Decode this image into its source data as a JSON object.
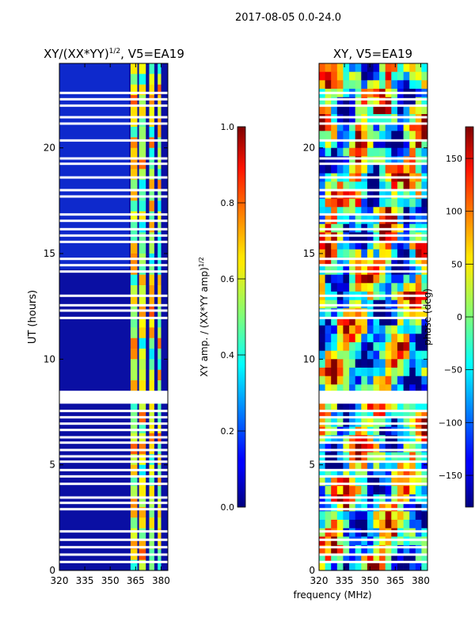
{
  "figure": {
    "suptitle": "2017-08-05 0.0-24.0",
    "xlabel": "frequency (MHz)"
  },
  "chart_data": [
    {
      "type": "heatmap",
      "title_base": "XY/(XX*YY)",
      "title_exp": "1/2",
      "title_suffix": ", V5=EA19",
      "ylabel": "UT (hours)",
      "x_ticks": [
        320,
        335,
        350,
        365,
        380
      ],
      "x_tick_labels": [
        "320",
        "335",
        "350",
        "365",
        "380"
      ],
      "xlim": [
        320,
        384
      ],
      "y_ticks": [
        0,
        5,
        10,
        15,
        20
      ],
      "y_tick_labels": [
        "0",
        "5",
        "10",
        "15",
        "20"
      ],
      "ylim": [
        0,
        24
      ],
      "colorbar": {
        "label_base": "XY amp. / (XX*YY amp)",
        "label_exp": "1/2",
        "range": [
          0.0,
          1.0
        ],
        "ticks": [
          0.0,
          0.2,
          0.4,
          0.6,
          0.8,
          1.0
        ],
        "tick_labels": [
          "0.0",
          "0.2",
          "0.4",
          "0.6",
          "0.8",
          "1.0"
        ]
      },
      "bright_bands_mhz": [
        [
          362,
          366
        ],
        [
          367,
          371
        ],
        [
          373,
          376
        ],
        [
          378,
          380
        ]
      ],
      "blank_rows_ut": [
        0.4,
        0.75,
        1.1,
        1.45,
        1.85,
        2.9,
        3.2,
        3.45,
        4.1,
        4.45,
        4.75,
        5.15,
        5.4,
        5.7,
        6.05,
        6.3,
        6.65,
        6.95,
        7.25,
        7.55,
        7.95,
        8.2,
        8.45,
        11.95,
        12.3,
        12.55,
        13.0,
        14.15,
        14.45,
        14.75,
        15.55,
        15.85,
        16.15,
        16.55,
        16.85,
        17.7,
        18.0,
        18.6,
        19.25,
        19.5,
        20.35,
        21.15,
        21.45,
        22.0,
        22.3,
        22.6
      ]
    },
    {
      "type": "heatmap",
      "title": "XY, V5=EA19",
      "x_ticks": [
        320,
        335,
        350,
        365,
        380
      ],
      "x_tick_labels": [
        "320",
        "335",
        "350",
        "365",
        "380"
      ],
      "xlim": [
        320,
        384
      ],
      "y_ticks": [
        0,
        5,
        10,
        15,
        20
      ],
      "y_tick_labels": [
        "0",
        "5",
        "10",
        "15",
        "20"
      ],
      "ylim": [
        0,
        24
      ],
      "colorbar": {
        "label": "phase (deg)",
        "range": [
          -180,
          180
        ],
        "ticks": [
          -150,
          -100,
          -50,
          0,
          50,
          100,
          150
        ],
        "tick_labels": [
          "−150",
          "−100",
          "−50",
          "0",
          "50",
          "100",
          "150"
        ]
      },
      "blank_rows_ut": [
        0.4,
        0.75,
        1.1,
        1.45,
        1.85,
        2.9,
        3.2,
        3.45,
        4.1,
        4.45,
        4.75,
        5.15,
        5.4,
        5.7,
        6.05,
        6.3,
        6.65,
        6.95,
        7.25,
        7.55,
        7.95,
        8.2,
        8.45,
        11.95,
        12.3,
        12.55,
        13.0,
        14.15,
        14.45,
        14.75,
        15.55,
        15.85,
        16.15,
        16.55,
        16.85,
        17.7,
        18.0,
        18.6,
        19.25,
        19.5,
        20.35,
        21.15,
        21.45,
        22.0,
        22.3,
        22.6
      ]
    }
  ]
}
